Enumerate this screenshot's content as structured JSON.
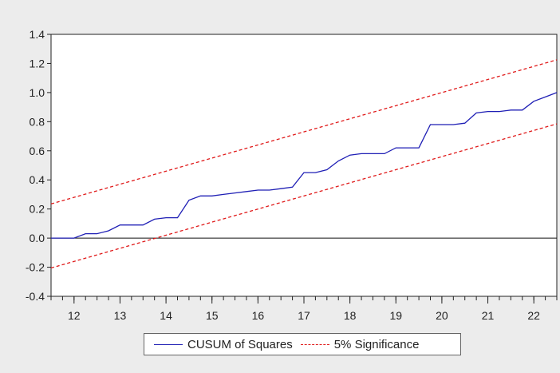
{
  "chart_data": {
    "type": "line",
    "title": "",
    "xlabel": "",
    "ylabel": "",
    "xlim": [
      11.5,
      22.5
    ],
    "ylim": [
      -0.4,
      1.4
    ],
    "x_ticks": [
      12,
      13,
      14,
      15,
      16,
      17,
      18,
      19,
      20,
      21,
      22
    ],
    "y_ticks": [
      -0.4,
      -0.2,
      0.0,
      0.2,
      0.4,
      0.6,
      0.8,
      1.0,
      1.2,
      1.4
    ],
    "y_tick_labels": [
      "-0.4",
      "-0.2",
      "0.0",
      "0.2",
      "0.4",
      "0.6",
      "0.8",
      "1.0",
      "1.2",
      "1.4"
    ],
    "x_tick_labels": [
      "12",
      "13",
      "14",
      "15",
      "16",
      "17",
      "18",
      "19",
      "20",
      "21",
      "22"
    ],
    "grid": false,
    "zero_line": true,
    "legend_position": "bottom",
    "series": [
      {
        "name": "CUSUM of Squares",
        "color": "#1f1fb5",
        "style": "solid",
        "x": [
          11.5,
          11.75,
          12.0,
          12.25,
          12.5,
          12.75,
          13.0,
          13.25,
          13.5,
          13.75,
          14.0,
          14.25,
          14.5,
          14.75,
          15.0,
          15.25,
          15.5,
          15.75,
          16.0,
          16.25,
          16.5,
          16.75,
          17.0,
          17.25,
          17.5,
          17.75,
          18.0,
          18.25,
          18.5,
          18.75,
          19.0,
          19.25,
          19.5,
          19.75,
          20.0,
          20.25,
          20.5,
          20.75,
          21.0,
          21.25,
          21.5,
          21.75,
          22.0,
          22.25,
          22.5
        ],
        "values": [
          0.0,
          0.0,
          0.0,
          0.03,
          0.03,
          0.05,
          0.09,
          0.09,
          0.09,
          0.13,
          0.14,
          0.14,
          0.26,
          0.29,
          0.29,
          0.3,
          0.31,
          0.32,
          0.33,
          0.33,
          0.34,
          0.35,
          0.45,
          0.45,
          0.47,
          0.53,
          0.57,
          0.58,
          0.58,
          0.58,
          0.62,
          0.62,
          0.62,
          0.78,
          0.78,
          0.78,
          0.79,
          0.86,
          0.87,
          0.87,
          0.88,
          0.88,
          0.94,
          0.97,
          1.0
        ]
      },
      {
        "name": "5% Significance",
        "color": "#e01a1a",
        "style": "dashed",
        "x": [
          11.5,
          22.5
        ],
        "values": [
          0.235,
          1.225
        ]
      },
      {
        "name": "5% Significance",
        "color": "#e01a1a",
        "style": "dashed",
        "x": [
          11.5,
          22.5
        ],
        "values": [
          -0.205,
          0.785
        ]
      }
    ],
    "legend": [
      "CUSUM of Squares",
      "5% Significance"
    ]
  }
}
